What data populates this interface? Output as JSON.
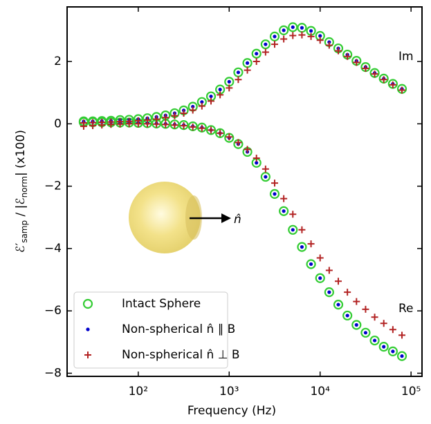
{
  "chart_data": {
    "type": "scatter",
    "x_label": "Frequency (Hz)",
    "y_label": [
      "ℰ′",
      "samp",
      " / |ℰ",
      "norm",
      "| (x100)"
    ],
    "log_x": true,
    "xlim": [
      16.5,
      132000
    ],
    "xticks": [
      {
        "value": 100,
        "label": "10²"
      },
      {
        "value": 1000,
        "label": "10³"
      },
      {
        "value": 10000,
        "label": "10⁴"
      },
      {
        "value": 100000,
        "label": "10⁵"
      }
    ],
    "ylim": [
      -8.1,
      3.75
    ],
    "yticks": [
      {
        "value": -8,
        "label": "−8"
      },
      {
        "value": -6,
        "label": "−6"
      },
      {
        "value": -4,
        "label": "−4"
      },
      {
        "value": -2,
        "label": "−2"
      },
      0,
      2
    ],
    "annotations": [
      "Im",
      "Re",
      "n̂"
    ],
    "legend": "lower left",
    "x": [
      25.1,
      31.6,
      39.8,
      50.1,
      63.1,
      79.4,
      100,
      125.9,
      158.5,
      199.5,
      251.2,
      316.2,
      398.1,
      501.2,
      631,
      794.3,
      1000,
      1258.9,
      1584.9,
      1995.3,
      2511.9,
      3162.3,
      3981.1,
      5011.9,
      6309.6,
      7943.3,
      10000,
      12589,
      15849,
      19953,
      25119,
      31623,
      39811,
      50119,
      63096,
      79433
    ],
    "series": [
      {
        "name": "Intact Sphere",
        "color": "#33cc33",
        "marker": "open-circle",
        "im": [
          0.08,
          0.08,
          0.09,
          0.1,
          0.12,
          0.13,
          0.15,
          0.18,
          0.22,
          0.27,
          0.34,
          0.43,
          0.55,
          0.7,
          0.88,
          1.1,
          1.35,
          1.65,
          1.95,
          2.25,
          2.55,
          2.8,
          3.0,
          3.1,
          3.08,
          2.98,
          2.82,
          2.62,
          2.42,
          2.22,
          2.02,
          1.82,
          1.63,
          1.45,
          1.28,
          1.12
        ],
        "re": [
          0.05,
          0.05,
          0.05,
          0.05,
          0.04,
          0.04,
          0.03,
          0.02,
          0.01,
          0,
          -0.02,
          -0.04,
          -0.08,
          -0.12,
          -0.2,
          -0.3,
          -0.45,
          -0.65,
          -0.9,
          -1.25,
          -1.7,
          -2.25,
          -2.8,
          -3.4,
          -3.95,
          -4.5,
          -4.95,
          -5.4,
          -5.8,
          -6.15,
          -6.45,
          -6.7,
          -6.95,
          -7.15,
          -7.3,
          -7.45
        ]
      },
      {
        "name": "Non-spherical n̂ ∥ B",
        "color": "#0000cc",
        "marker": "dot",
        "im": [
          0.08,
          0.08,
          0.09,
          0.1,
          0.12,
          0.13,
          0.15,
          0.18,
          0.22,
          0.27,
          0.34,
          0.43,
          0.55,
          0.7,
          0.88,
          1.1,
          1.35,
          1.65,
          1.95,
          2.25,
          2.55,
          2.8,
          3.0,
          3.1,
          3.08,
          2.98,
          2.82,
          2.62,
          2.42,
          2.22,
          2.02,
          1.82,
          1.63,
          1.45,
          1.28,
          1.12
        ],
        "re": [
          0.05,
          0.05,
          0.05,
          0.05,
          0.04,
          0.04,
          0.03,
          0.02,
          0.01,
          0,
          -0.02,
          -0.04,
          -0.08,
          -0.12,
          -0.2,
          -0.3,
          -0.45,
          -0.65,
          -0.9,
          -1.25,
          -1.7,
          -2.25,
          -2.8,
          -3.4,
          -3.95,
          -4.5,
          -4.95,
          -5.4,
          -5.8,
          -6.15,
          -6.45,
          -6.7,
          -6.95,
          -7.15,
          -7.3,
          -7.45
        ]
      },
      {
        "name": "Non-spherical n̂ ⊥ B",
        "color": "#b22222",
        "marker": "plus",
        "im": [
          0.03,
          0.04,
          0.05,
          0.06,
          0.07,
          0.08,
          0.1,
          0.12,
          0.15,
          0.2,
          0.26,
          0.34,
          0.44,
          0.57,
          0.73,
          0.93,
          1.15,
          1.42,
          1.72,
          2.0,
          2.3,
          2.55,
          2.72,
          2.83,
          2.85,
          2.8,
          2.68,
          2.52,
          2.34,
          2.16,
          1.97,
          1.78,
          1.6,
          1.42,
          1.25,
          1.08
        ],
        "re": [
          -0.08,
          -0.06,
          -0.04,
          -0.02,
          -0.01,
          0,
          0,
          0,
          -0.01,
          -0.02,
          -0.04,
          -0.06,
          -0.1,
          -0.14,
          -0.2,
          -0.3,
          -0.42,
          -0.6,
          -0.82,
          -1.1,
          -1.45,
          -1.9,
          -2.4,
          -2.9,
          -3.4,
          -3.85,
          -4.3,
          -4.7,
          -5.05,
          -5.4,
          -5.7,
          -5.95,
          -6.2,
          -6.4,
          -6.6,
          -6.78
        ]
      }
    ]
  }
}
